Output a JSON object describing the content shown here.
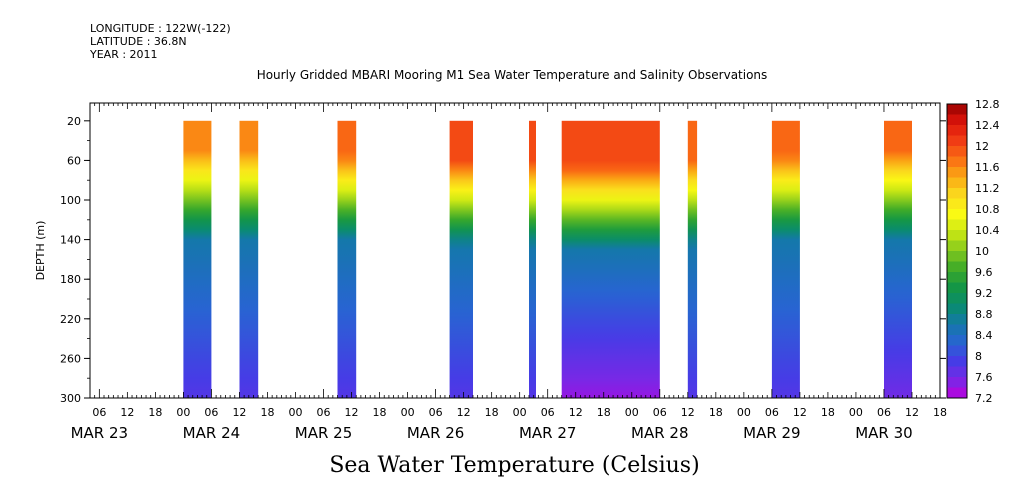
{
  "header": {
    "longitude": "LONGITUDE : 122W(-122)",
    "latitude": "LATITUDE : 36.8N",
    "year": "YEAR : 2011"
  },
  "chart_data": {
    "type": "heatmap",
    "title": "Hourly Gridded MBARI Mooring M1 Sea Water Temperature and Salinity Observations",
    "variable_label": "Sea Water Temperature (Celsius)",
    "ylabel": "DEPTH (m)",
    "y_ticks": [
      20,
      60,
      100,
      140,
      180,
      220,
      260,
      300
    ],
    "ylim": [
      300,
      2
    ],
    "x_range_hours": [
      "MAR 22 22:00",
      "MAR 30 12:00"
    ],
    "x_hour_ticks": [
      "06",
      "12",
      "18",
      "00",
      "06",
      "12",
      "18",
      "00",
      "06",
      "12",
      "18",
      "00",
      "06",
      "12",
      "18",
      "00",
      "06",
      "12",
      "18",
      "00",
      "06",
      "12",
      "18",
      "00",
      "06",
      "12",
      "18",
      "00",
      "06",
      "12",
      "18",
      "00",
      "06"
    ],
    "x_day_labels": [
      "MAR 23",
      "MAR 24",
      "MAR 25",
      "MAR 26",
      "MAR 27",
      "MAR 28",
      "MAR 29",
      "MAR 30"
    ],
    "colorbar_ticks": [
      "12.8",
      "12.4",
      "12",
      "11.6",
      "11.2",
      "10.8",
      "10.4",
      "10",
      "9.6",
      "9.2",
      "8.8",
      "8.4",
      "8",
      "7.6",
      "7.2"
    ],
    "colorbar_range": [
      7.2,
      12.8
    ],
    "colorbar_step": 0.2,
    "data_segments": [
      {
        "start": "MAR 23 18:00",
        "end": "MAR 24 00:00",
        "surface_temp": 11.6,
        "thermocline_top": 50,
        "thermocline_bottom": 140,
        "bottom_temp": 7.8
      },
      {
        "start": "MAR 24 06:00",
        "end": "MAR 24 10:00",
        "surface_temp": 11.6,
        "thermocline_top": 50,
        "thermocline_bottom": 140,
        "bottom_temp": 7.8
      },
      {
        "start": "MAR 25 03:00",
        "end": "MAR 25 07:00",
        "surface_temp": 11.8,
        "thermocline_top": 55,
        "thermocline_bottom": 140,
        "bottom_temp": 7.8
      },
      {
        "start": "MAR 26 03:00",
        "end": "MAR 26 08:00",
        "surface_temp": 12.0,
        "thermocline_top": 60,
        "thermocline_bottom": 145,
        "bottom_temp": 7.8
      },
      {
        "start": "MAR 26 20:00",
        "end": "MAR 26 21:30",
        "surface_temp": 12.0,
        "thermocline_top": 60,
        "thermocline_bottom": 145,
        "bottom_temp": 7.8
      },
      {
        "start": "MAR 27 03:00",
        "end": "MAR 28 00:00",
        "surface_temp": 12.0,
        "thermocline_top": 65,
        "thermocline_bottom": 150,
        "bottom_temp": 7.4
      },
      {
        "start": "MAR 28 06:00",
        "end": "MAR 28 08:00",
        "surface_temp": 11.8,
        "thermocline_top": 60,
        "thermocline_bottom": 145,
        "bottom_temp": 7.8
      },
      {
        "start": "MAR 29 00:00",
        "end": "MAR 29 06:00",
        "surface_temp": 11.8,
        "thermocline_top": 55,
        "thermocline_bottom": 140,
        "bottom_temp": 7.8
      },
      {
        "start": "MAR 30 00:00",
        "end": "MAR 30 06:00",
        "surface_temp": 11.8,
        "thermocline_top": 50,
        "thermocline_bottom": 140,
        "bottom_temp": 7.6
      }
    ]
  }
}
